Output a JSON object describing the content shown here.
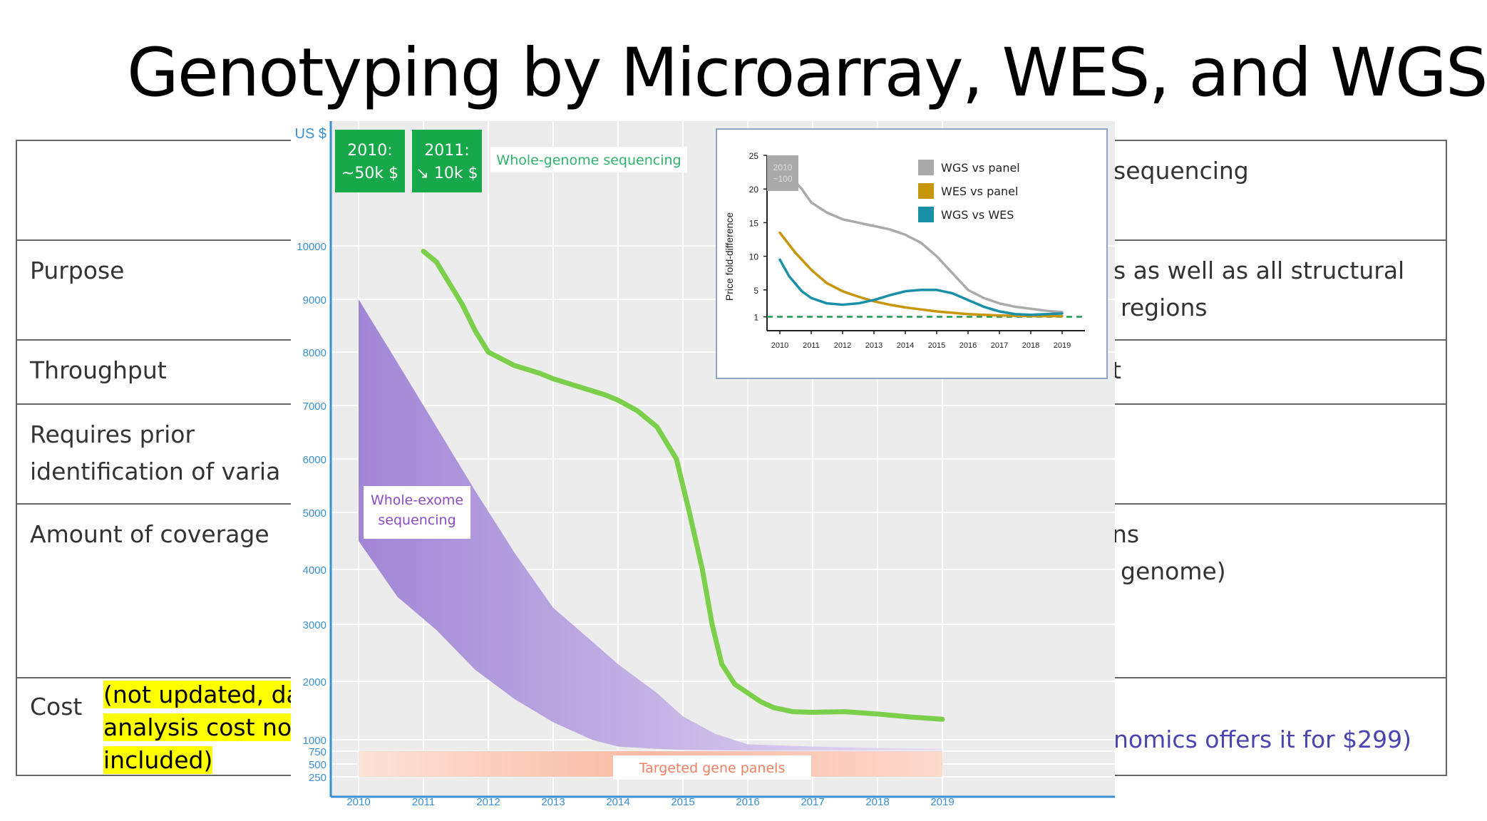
{
  "slide": {
    "title": "Genotyping by Microarray, WES, and WGS"
  },
  "background_table": {
    "header_right": "sequencing",
    "rows": [
      {
        "label": "Purpose",
        "right_lines": [
          "s as well as all structural",
          "regions"
        ]
      },
      {
        "label": "Throughput",
        "right_lines": [
          "t"
        ]
      },
      {
        "label_lines": [
          "Requires prior",
          "identification of varia"
        ],
        "right_lines": []
      },
      {
        "label": "Amount of coverage",
        "right_lines": [
          "ns",
          "genome)"
        ]
      },
      {
        "label": "Cost",
        "right_lines": [
          "nomics offers it for $299)"
        ]
      }
    ],
    "cost_note_lines": [
      "(not updated, da",
      "analysis cost not",
      "included)"
    ]
  },
  "chart_data": [
    {
      "type": "area",
      "ylabel": "US $",
      "x_ticks": [
        "2010",
        "2011",
        "2012",
        "2013",
        "2014",
        "2015",
        "2016",
        "2017",
        "2018",
        "2019"
      ],
      "y_ticks": [
        10000,
        9000,
        8000,
        7000,
        6000,
        5000,
        4000,
        3000,
        2000,
        1000,
        750,
        500,
        250
      ],
      "callouts": [
        {
          "lines": [
            "2010:",
            "~50k $"
          ]
        },
        {
          "lines": [
            "2011:",
            "↘ 10k $"
          ]
        }
      ],
      "series": [
        {
          "name": "Whole-genome sequencing",
          "kind": "line",
          "color": "#7ccf4a",
          "x": [
            2011.0,
            2011.2,
            2011.4,
            2011.6,
            2011.8,
            2012.0,
            2012.4,
            2012.8,
            2013.0,
            2013.4,
            2013.8,
            2014.0,
            2014.3,
            2014.6,
            2014.9,
            2015.1,
            2015.3,
            2015.45,
            2015.6,
            2015.8,
            2016.0,
            2016.2,
            2016.4,
            2016.7,
            2017.0,
            2017.5,
            2018.0,
            2018.5,
            2019.0
          ],
          "y": [
            9900,
            9700,
            9300,
            8900,
            8400,
            8000,
            7750,
            7600,
            7500,
            7350,
            7200,
            7100,
            6900,
            6600,
            6000,
            5000,
            4000,
            3000,
            2300,
            1950,
            1800,
            1650,
            1550,
            1480,
            1470,
            1480,
            1440,
            1390,
            1350
          ]
        },
        {
          "name": "Whole-exome sequencing",
          "kind": "band",
          "color": "#9b7fd4",
          "x": [
            2010.0,
            2010.6,
            2011.2,
            2011.8,
            2012.4,
            2013.0,
            2013.6,
            2014.0,
            2014.6,
            2015.0,
            2015.5,
            2016.0,
            2017.0,
            2018.0,
            2019.0
          ],
          "upper": [
            9000,
            7800,
            6600,
            5400,
            4300,
            3300,
            2700,
            2300,
            1800,
            1400,
            1100,
            900,
            850,
            820,
            800
          ],
          "lower": [
            4500,
            3500,
            2900,
            2200,
            1700,
            1300,
            1000,
            850,
            800,
            780,
            770,
            760,
            760,
            760,
            760
          ]
        },
        {
          "name": "Targeted gene panels",
          "kind": "band",
          "color": "#f7a98e",
          "x": [
            2010.0,
            2019.0
          ],
          "upper": [
            750,
            750
          ],
          "lower": [
            250,
            250
          ]
        }
      ]
    },
    {
      "type": "line",
      "ylabel": "Price fold-difference",
      "x_ticks": [
        "2010",
        "2011",
        "2012",
        "2013",
        "2014",
        "2015",
        "2016",
        "2017",
        "2018",
        "2019"
      ],
      "y_ticks": [
        "25",
        "20",
        "15",
        "10",
        "5",
        "1"
      ],
      "ylim": [
        0,
        25
      ],
      "corner_badge": [
        "2010",
        "~100"
      ],
      "legend_position": "top-right",
      "reference_line": 1,
      "series": [
        {
          "name": "WGS vs panel",
          "color": "#aaaaaa",
          "x": [
            2010.3,
            2010.7,
            2011.0,
            2011.5,
            2012.0,
            2012.5,
            2013.0,
            2013.5,
            2014.0,
            2014.5,
            2015.0,
            2015.5,
            2016.0,
            2016.5,
            2017.0,
            2017.5,
            2018.0,
            2018.5,
            2019.0
          ],
          "y": [
            22,
            20,
            18,
            16.5,
            15.5,
            15,
            14.5,
            14,
            13.2,
            12,
            10,
            7.5,
            5,
            3.8,
            3,
            2.5,
            2.2,
            1.9,
            1.7
          ]
        },
        {
          "name": "WES vs panel",
          "color": "#c8960c",
          "x": [
            2010.0,
            2010.5,
            2011.0,
            2011.5,
            2012.0,
            2012.5,
            2013.0,
            2013.5,
            2014.0,
            2014.5,
            2015.0,
            2015.5,
            2016.0,
            2016.5,
            2017.0,
            2017.5,
            2018.0,
            2018.5,
            2019.0
          ],
          "y": [
            13.5,
            10.5,
            8,
            6,
            4.8,
            4,
            3.3,
            2.8,
            2.4,
            2.1,
            1.8,
            1.6,
            1.4,
            1.3,
            1.2,
            1.15,
            1.1,
            1.1,
            1.1
          ]
        },
        {
          "name": "WGS vs WES",
          "color": "#1a90a8",
          "x": [
            2010.0,
            2010.3,
            2010.7,
            2011.0,
            2011.5,
            2012.0,
            2012.5,
            2013.0,
            2013.5,
            2014.0,
            2014.5,
            2015.0,
            2015.5,
            2016.0,
            2016.5,
            2017.0,
            2017.5,
            2018.0,
            2018.5,
            2019.0
          ],
          "y": [
            9.5,
            7,
            4.8,
            3.8,
            3.0,
            2.8,
            3.0,
            3.5,
            4.2,
            4.8,
            5.0,
            5.0,
            4.5,
            3.5,
            2.5,
            1.8,
            1.4,
            1.3,
            1.4,
            1.5
          ]
        }
      ]
    }
  ]
}
